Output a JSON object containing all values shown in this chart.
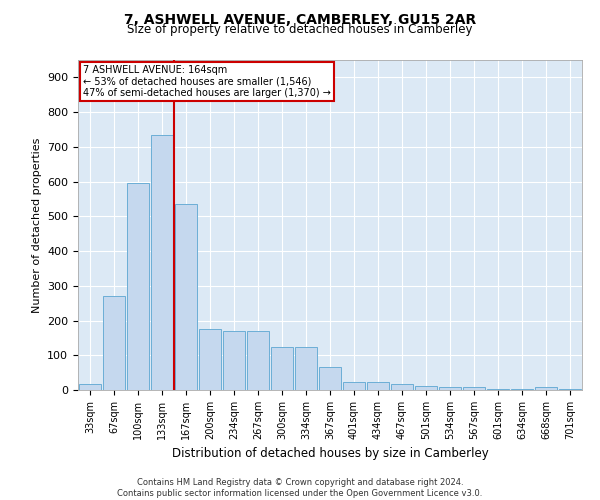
{
  "title": "7, ASHWELL AVENUE, CAMBERLEY, GU15 2AR",
  "subtitle": "Size of property relative to detached houses in Camberley",
  "xlabel": "Distribution of detached houses by size in Camberley",
  "ylabel": "Number of detached properties",
  "footer_line1": "Contains HM Land Registry data © Crown copyright and database right 2024.",
  "footer_line2": "Contains public sector information licensed under the Open Government Licence v3.0.",
  "bar_labels": [
    "33sqm",
    "67sqm",
    "100sqm",
    "133sqm",
    "167sqm",
    "200sqm",
    "234sqm",
    "267sqm",
    "300sqm",
    "334sqm",
    "367sqm",
    "401sqm",
    "434sqm",
    "467sqm",
    "501sqm",
    "534sqm",
    "567sqm",
    "601sqm",
    "634sqm",
    "668sqm",
    "701sqm"
  ],
  "bar_values": [
    17,
    270,
    595,
    735,
    535,
    175,
    170,
    170,
    125,
    125,
    65,
    22,
    22,
    18,
    12,
    10,
    10,
    3,
    3,
    10,
    3
  ],
  "bar_color": "#c5d8ee",
  "bar_edge_color": "#6baed6",
  "bg_color": "#dce9f5",
  "grid_color": "#ffffff",
  "vline_color": "#cc0000",
  "annotation_title": "7 ASHWELL AVENUE: 164sqm",
  "annotation_line1": "← 53% of detached houses are smaller (1,546)",
  "annotation_line2": "47% of semi-detached houses are larger (1,370) →",
  "annotation_box_color": "#cc0000",
  "ylim": [
    0,
    950
  ],
  "yticks": [
    0,
    100,
    200,
    300,
    400,
    500,
    600,
    700,
    800,
    900
  ],
  "figwidth": 6.0,
  "figheight": 5.0,
  "dpi": 100
}
